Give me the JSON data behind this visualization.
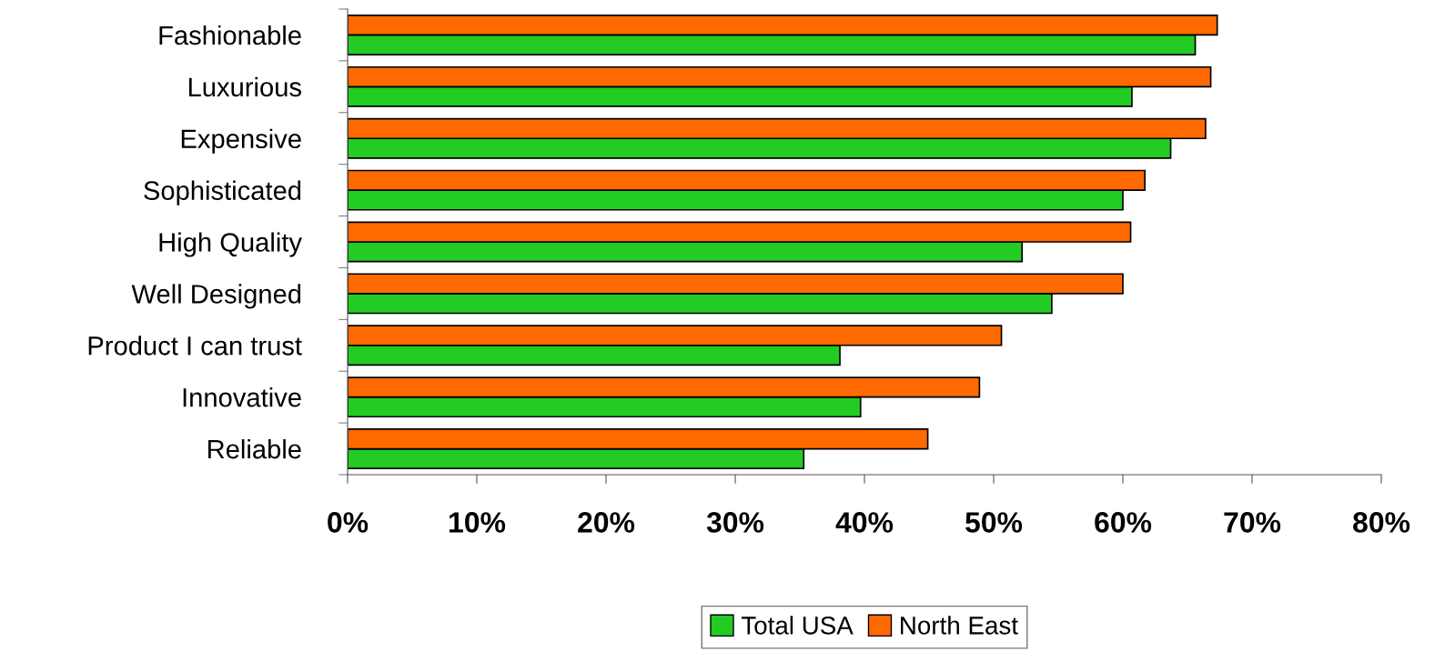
{
  "chart_data": {
    "type": "bar",
    "orientation": "horizontal",
    "categories": [
      "Fashionable",
      "Luxurious",
      "Expensive",
      "Sophisticated",
      "High Quality",
      "Well Designed",
      "Product I can trust",
      "Innovative",
      "Reliable"
    ],
    "series": [
      {
        "name": "Total USA",
        "color": "#22cc22",
        "values": [
          65.6,
          60.7,
          63.7,
          60.0,
          52.2,
          54.5,
          38.1,
          39.7,
          35.3
        ]
      },
      {
        "name": "North East",
        "color": "#ff6a00",
        "values": [
          67.3,
          66.8,
          66.4,
          61.7,
          60.6,
          60.0,
          50.6,
          48.9,
          44.9
        ]
      }
    ],
    "xlim": [
      0,
      80
    ],
    "xticks": [
      {
        "value": 0,
        "label": "0%"
      },
      {
        "value": 10,
        "label": "10%"
      },
      {
        "value": 20,
        "label": "20%"
      },
      {
        "value": 30,
        "label": "30%"
      },
      {
        "value": 40,
        "label": "40%"
      },
      {
        "value": 50,
        "label": "50%"
      },
      {
        "value": 60,
        "label": "60%"
      },
      {
        "value": 70,
        "label": "70%"
      },
      {
        "value": 80,
        "label": "80%"
      }
    ],
    "grid": false,
    "legend": "bottom"
  }
}
